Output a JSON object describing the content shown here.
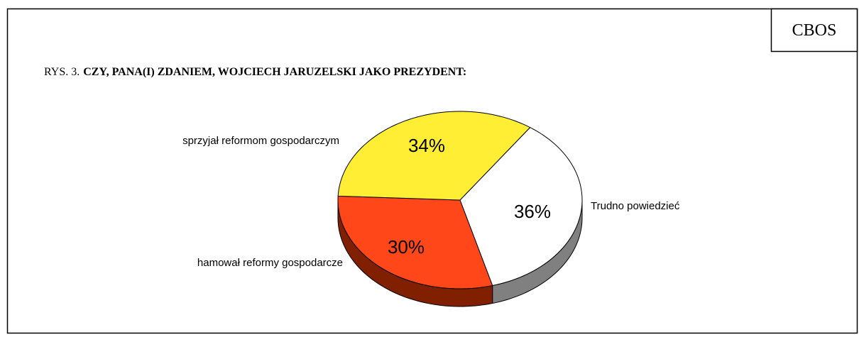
{
  "chart_data": {
    "type": "pie",
    "source": "CBOS",
    "figure_label": "RYS. 3.",
    "title": "CZY, PANA(I) ZDANIEM, WOJCIECH JARUZELSKI JAKO PREZYDENT:",
    "categories": [
      "Trudno powiedzieć",
      "hamował reformy gospodarcze",
      "sprzyjał reformom gospodarczym"
    ],
    "values": [
      36,
      30,
      34
    ],
    "value_labels": [
      "36%",
      "30%",
      "34%"
    ],
    "colors": [
      "#ffffff",
      "#ff4719",
      "#ffee33"
    ],
    "side_colors": [
      "#808080",
      "#802000",
      "#a09020"
    ]
  }
}
